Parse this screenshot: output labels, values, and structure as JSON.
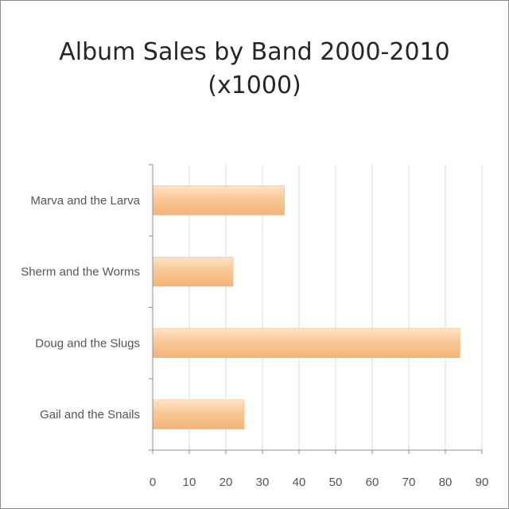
{
  "chart_data": {
    "type": "bar",
    "orientation": "horizontal",
    "title": [
      "Album Sales by Band 2000-2010",
      "(x1000)"
    ],
    "categories": [
      "Marva and the Larva",
      "Sherm and the Worms",
      "Doug and the Slugs",
      "Gail and the Snails"
    ],
    "values": [
      36,
      22,
      84,
      25
    ],
    "xlim": [
      0,
      90
    ],
    "xticks": [
      "0",
      "10",
      "20",
      "30",
      "40",
      "50",
      "60",
      "70",
      "80",
      "90"
    ],
    "grid": true,
    "legend": "none",
    "bar_color": "#f9c48f"
  }
}
